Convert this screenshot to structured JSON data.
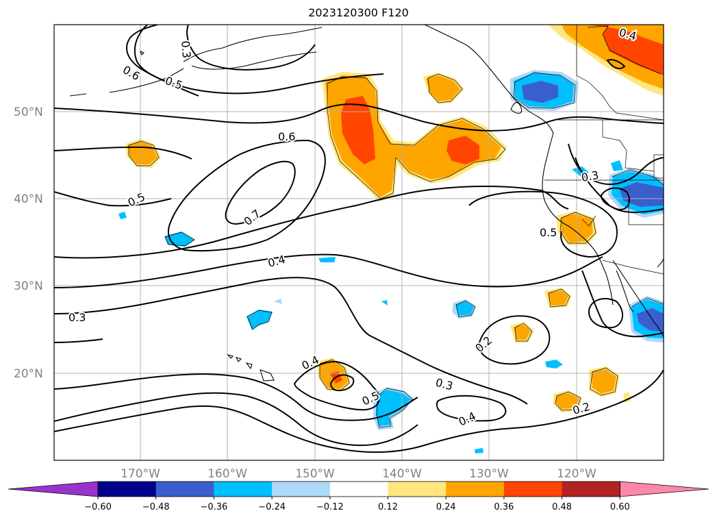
{
  "title": "2023120300 F120",
  "lat_labels": [
    "50°N",
    "40°N",
    "30°N",
    "20°N"
  ],
  "lon_labels": [
    "170°W",
    "160°W",
    "150°W",
    "140°W",
    "130°W",
    "120°W"
  ],
  "contour_labels": [
    "0.6",
    "0.5",
    "0.3",
    "0.6",
    "0.7",
    "0.5",
    "0.4",
    "0.3",
    "0.4",
    "0.5",
    "0.3",
    "0.2",
    "0.4",
    "0.2",
    "0.3",
    "0.5",
    "0.4"
  ],
  "colorbar": {
    "ticks": [
      "−0.60",
      "−0.48",
      "−0.36",
      "−0.24",
      "−0.12",
      "0.12",
      "0.24",
      "0.36",
      "0.48",
      "0.60"
    ],
    "colors": [
      "#9933cc",
      "#00008b",
      "#3a5fcd",
      "#00bfff",
      "#add8f7",
      "#ffffff",
      "#ffe680",
      "#ffa500",
      "#ff4500",
      "#b22222",
      "#ff88aa"
    ]
  }
}
